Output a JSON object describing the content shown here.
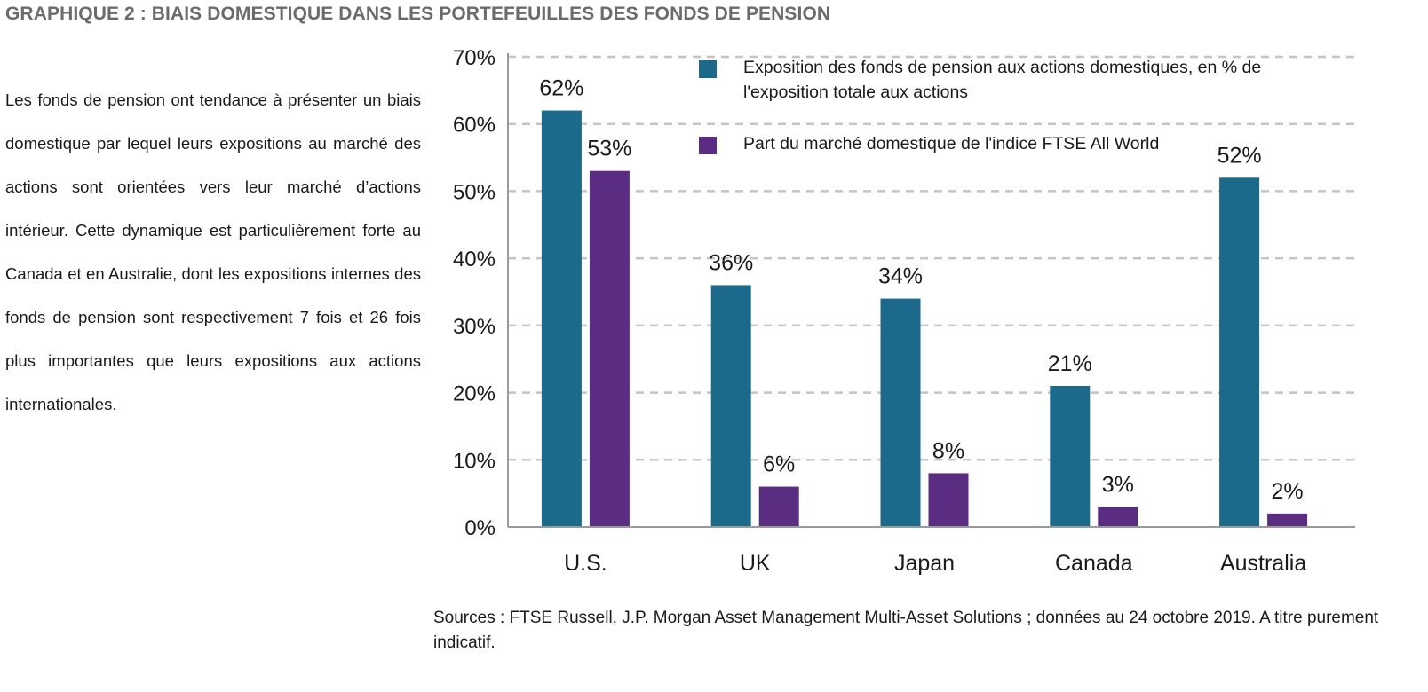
{
  "header": {
    "title": "GRAPHIQUE 2 : BIAIS DOMESTIQUE DANS LES PORTEFEUILLES DES FONDS DE PENSION"
  },
  "intro_text": "Les fonds de pension ont tendance à présenter un biais domestique par lequel leurs expositions au marché des actions sont orientées vers leur marché d’actions intérieur. Cette dynamique est particulièrement forte au Canada et en Australie, dont les expositions internes des fonds de pension sont respectivement 7 fois et 26 fois plus importantes que leurs expositions aux actions  internationales.",
  "footer": {
    "source": "Sources : FTSE Russell, J.P. Morgan Asset Management Multi-Asset Solutions ; données au 24 octobre 2019. A titre purement indicatif."
  },
  "chart_data": {
    "type": "bar",
    "title": "",
    "xlabel": "",
    "ylabel": "",
    "categories": [
      "U.S.",
      "UK",
      "Japan",
      "Canada",
      "Australia"
    ],
    "series": [
      {
        "name": "Exposition des fonds de pension aux actions domestiques, en % de l'exposition totale aux actions",
        "values": [
          62,
          36,
          34,
          21,
          52
        ],
        "data_labels": [
          "62%",
          "36%",
          "34%",
          "21%",
          "52%"
        ],
        "color": "#1b6a8c"
      },
      {
        "name": "Part du marché domestique de l'indice FTSE All World",
        "values": [
          53,
          6,
          8,
          3,
          2
        ],
        "data_labels": [
          "53%",
          "6%",
          "8%",
          "3%",
          "2%"
        ],
        "color": "#5a2d82"
      }
    ],
    "ylim": [
      0,
      70
    ],
    "yticks": [
      0,
      10,
      20,
      30,
      40,
      50,
      60,
      70
    ],
    "ytick_labels": [
      "0%",
      "10%",
      "20%",
      "30%",
      "40%",
      "50%",
      "60%",
      "70%"
    ],
    "grid": true,
    "grid_style": "dashed",
    "legend_position": "top-center"
  }
}
